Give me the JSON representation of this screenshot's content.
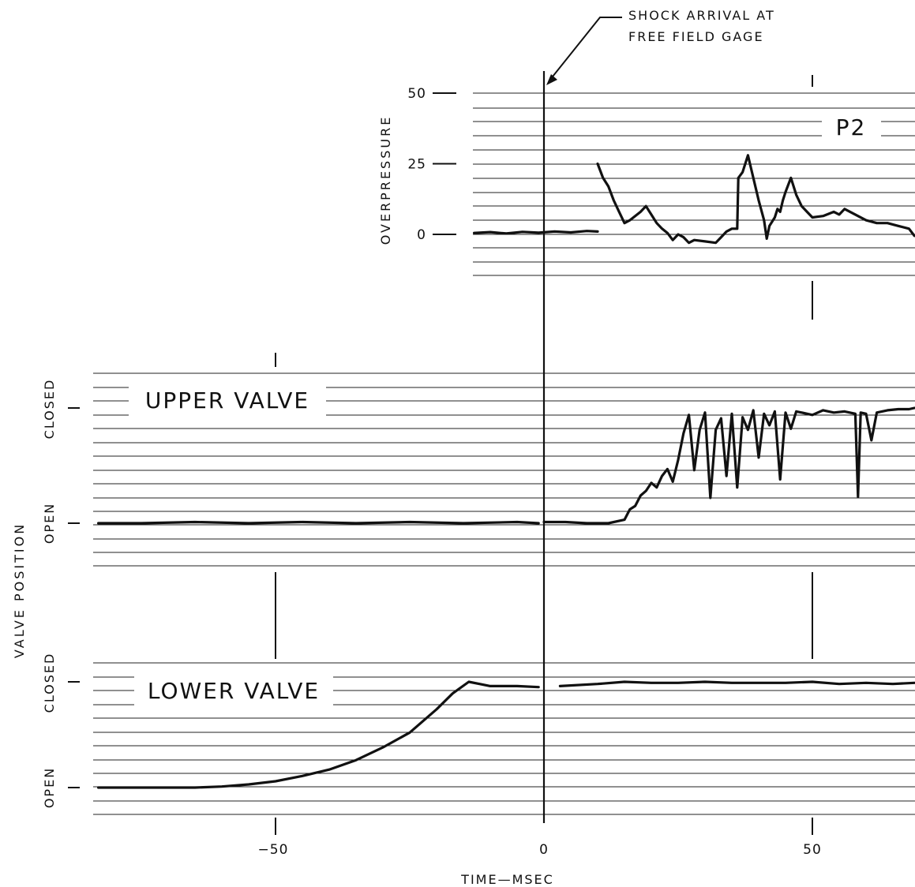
{
  "annotation": {
    "line1": "SHOCK ARRIVAL AT",
    "line2": "FREE FIELD GAGE"
  },
  "colors": {
    "ink": "#111111",
    "grid": "#222222",
    "background": "#ffffff"
  },
  "chart_data": [
    {
      "id": "pressure",
      "type": "line",
      "title": "P2",
      "ylabel": "OVERPRESSURE",
      "xlim": [
        -16,
        69
      ],
      "ylim": [
        -15,
        50
      ],
      "y_ticks": [
        {
          "value": 50,
          "label": "50"
        },
        {
          "value": 25,
          "label": "25"
        },
        {
          "value": 0,
          "label": "0"
        }
      ],
      "series": [
        {
          "x": [
            -13,
            -10,
            -7,
            -4,
            -1,
            2,
            5,
            8,
            10
          ],
          "y": [
            0.5,
            0.8,
            0.3,
            0.9,
            0.6,
            1.0,
            0.7,
            1.2,
            1.0
          ]
        },
        {
          "x": [
            10,
            11,
            12,
            13,
            14,
            15,
            16,
            18,
            19,
            20,
            21,
            22,
            23,
            24,
            25,
            26,
            27,
            28,
            30,
            32,
            33,
            34,
            35,
            36,
            36.2,
            37,
            38,
            39,
            40,
            41,
            41.5,
            42,
            43,
            43.5,
            44,
            44.5,
            45,
            46,
            47,
            48,
            49,
            50,
            52,
            54,
            55,
            56,
            58,
            60,
            62,
            64,
            66,
            68,
            69
          ],
          "y": [
            25,
            20,
            17,
            12,
            8,
            4,
            5,
            8,
            10,
            7,
            4,
            2,
            0.5,
            -2,
            0,
            -1,
            -3,
            -2,
            -2.5,
            -3,
            -1,
            1,
            2,
            2,
            20,
            22,
            28,
            20,
            12,
            5,
            -1.5,
            3,
            6,
            9,
            8,
            12,
            15,
            20,
            14,
            10,
            8,
            6,
            6.5,
            8,
            7,
            9,
            7,
            5,
            4,
            4,
            3,
            2,
            -0.5
          ]
        }
      ]
    },
    {
      "id": "upper_valve",
      "type": "line",
      "title": "UPPER VALVE",
      "ylabel": "",
      "xlim": [
        -83,
        69
      ],
      "ylim": [
        0,
        1
      ],
      "y_ticks": [
        {
          "value": 1,
          "label": "CLOSED"
        },
        {
          "value": 0,
          "label": "OPEN"
        }
      ],
      "series": [
        {
          "x": [
            -83,
            -75,
            -65,
            -55,
            -45,
            -35,
            -25,
            -15,
            -5,
            -1
          ],
          "y": [
            0,
            0,
            0.01,
            0,
            0.01,
            0,
            0.01,
            0,
            0.01,
            0
          ]
        },
        {
          "x": [
            0,
            4,
            8,
            12,
            15,
            16,
            17,
            18,
            19,
            20,
            21,
            22,
            23,
            24,
            25,
            26,
            27,
            28,
            29,
            30,
            31,
            32,
            33,
            34,
            35,
            36,
            37,
            38,
            39,
            40,
            41,
            42,
            43,
            44,
            45,
            46,
            47,
            48,
            50,
            52,
            54,
            56,
            58,
            58.5,
            59,
            60,
            61,
            62,
            64,
            66,
            68,
            69
          ],
          "y": [
            0.01,
            0.01,
            0,
            0,
            0.03,
            0.12,
            0.15,
            0.24,
            0.28,
            0.35,
            0.31,
            0.41,
            0.47,
            0.36,
            0.55,
            0.78,
            0.94,
            0.46,
            0.81,
            0.96,
            0.22,
            0.81,
            0.91,
            0.41,
            0.95,
            0.31,
            0.92,
            0.81,
            0.98,
            0.57,
            0.95,
            0.85,
            0.97,
            0.38,
            0.96,
            0.82,
            0.97,
            0.96,
            0.94,
            0.98,
            0.96,
            0.97,
            0.95,
            0.23,
            0.96,
            0.95,
            0.72,
            0.96,
            0.98,
            0.99,
            0.99,
            1.0
          ]
        }
      ]
    },
    {
      "id": "lower_valve",
      "type": "line",
      "title": "LOWER VALVE",
      "ylabel": "",
      "xlim": [
        -83,
        69
      ],
      "ylim": [
        0,
        1
      ],
      "y_ticks": [
        {
          "value": 1,
          "label": "CLOSED"
        },
        {
          "value": 0,
          "label": "OPEN"
        }
      ],
      "series": [
        {
          "x": [
            -83,
            -75,
            -65,
            -60,
            -55,
            -50,
            -45,
            -40,
            -35,
            -30,
            -25,
            -20,
            -17,
            -14,
            -12,
            -10,
            -5,
            -1
          ],
          "y": [
            0,
            0,
            0,
            0.01,
            0.03,
            0.06,
            0.11,
            0.17,
            0.26,
            0.38,
            0.52,
            0.74,
            0.89,
            1.0,
            0.98,
            0.96,
            0.96,
            0.95
          ]
        },
        {
          "x": [
            3,
            10,
            15,
            20,
            25,
            30,
            35,
            40,
            45,
            50,
            55,
            60,
            65,
            69
          ],
          "y": [
            0.96,
            0.98,
            1.0,
            0.99,
            0.99,
            1.0,
            0.99,
            0.99,
            0.99,
            1.0,
            0.98,
            0.99,
            0.98,
            0.99
          ]
        }
      ]
    }
  ],
  "shared_axes": {
    "xlabel": "TIME—MSEC",
    "shared_ylabel": "VALVE POSITION",
    "x_ticks": [
      {
        "value": -50,
        "label": "−50"
      },
      {
        "value": 0,
        "label": "0"
      },
      {
        "value": 50,
        "label": "50"
      }
    ]
  }
}
